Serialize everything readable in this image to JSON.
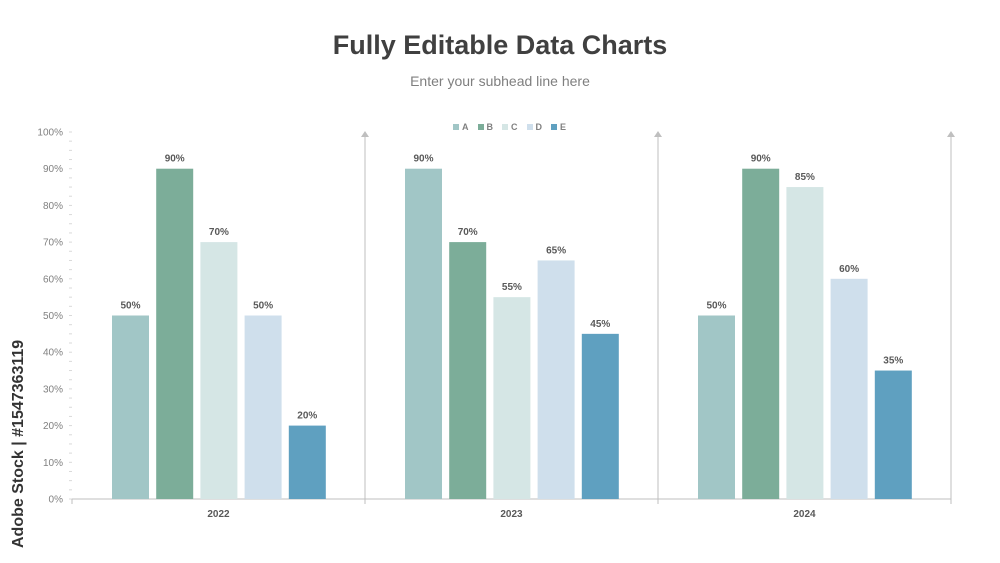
{
  "title": "Fully Editable Data Charts",
  "subtitle": "Enter your subhead line here",
  "watermark": "Adobe Stock | #1547363119",
  "colors": {
    "A": "#a1c6c6",
    "B": "#7cad99",
    "C": "#d5e6e5",
    "D": "#cfdfec",
    "E": "#5fa0c0",
    "axis": "#bfbfbf",
    "tick_text": "#808080",
    "value_text": "#595959"
  },
  "chart_data": {
    "type": "bar",
    "title": "Fully Editable Data Charts",
    "subtitle": "Enter your subhead line here",
    "categories": [
      "2022",
      "2023",
      "2024"
    ],
    "series": [
      {
        "name": "A",
        "values": [
          50,
          90,
          50
        ]
      },
      {
        "name": "B",
        "values": [
          90,
          70,
          90
        ]
      },
      {
        "name": "C",
        "values": [
          70,
          55,
          85
        ]
      },
      {
        "name": "D",
        "values": [
          50,
          65,
          60
        ]
      },
      {
        "name": "E",
        "values": [
          20,
          45,
          35
        ]
      }
    ],
    "value_labels": [
      [
        "50%",
        "90%",
        "70%",
        "50%",
        "20%"
      ],
      [
        "90%",
        "70%",
        "55%",
        "65%",
        "45%"
      ],
      [
        "50%",
        "90%",
        "85%",
        "60%",
        "35%"
      ]
    ],
    "y_ticks": [
      "0%",
      "10%",
      "20%",
      "30%",
      "40%",
      "50%",
      "60%",
      "70%",
      "80%",
      "90%",
      "100%"
    ],
    "ylim": [
      0,
      100
    ],
    "xlabel": "",
    "ylabel": "",
    "legend": "top-center",
    "grid": false
  }
}
